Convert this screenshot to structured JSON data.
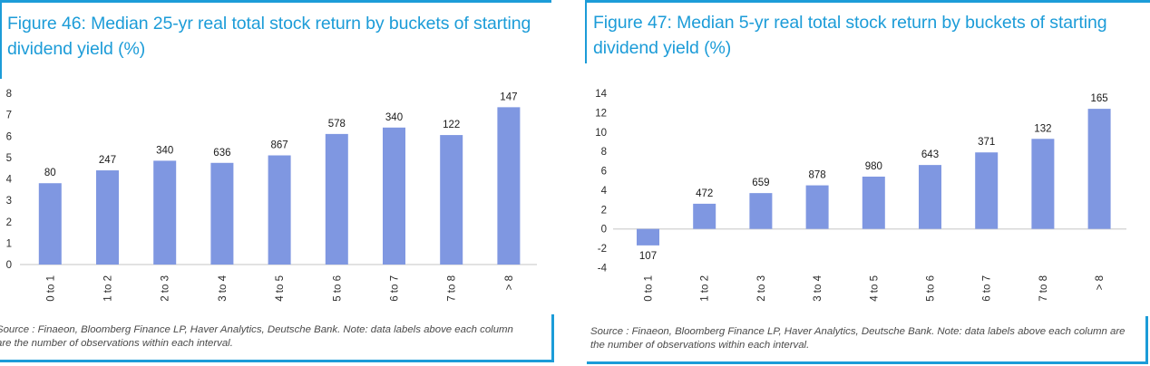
{
  "colors": {
    "accent_cyan": "#1C9CD8",
    "bar_blue": "#7F97E1",
    "axis_line_gray": "#D8D8D8",
    "label_dark": "#1A1A1A",
    "tick_gray": "#2B2B2B",
    "source_gray": "#4A4A4A"
  },
  "chart_data": [
    {
      "type": "bar",
      "title": "Figure 46: Median 25-yr real total stock return by buckets of starting dividend yield (%)",
      "note": "Source : Finaeon, Bloomberg Finance LP, Haver Analytics, Deutsche Bank. Note: data labels above each column are the number of observations within each interval.",
      "categories": [
        "0 to 1",
        "1 to 2",
        "2 to 3",
        "3 to 4",
        "4 to 5",
        "5 to 6",
        "6 to 7",
        "7 to 8",
        "> 8"
      ],
      "values": [
        3.8,
        4.4,
        4.85,
        4.75,
        5.1,
        6.1,
        6.4,
        6.05,
        7.35
      ],
      "bar_labels": [
        "80",
        "247",
        "340",
        "636",
        "867",
        "578",
        "340",
        "122",
        "147"
      ],
      "bar_labels_meaning": "number of observations within each interval",
      "xlabel": "",
      "ylabel": "",
      "ylim": [
        0,
        8
      ],
      "tick_step": 1,
      "grid": false,
      "legend_position": "none"
    },
    {
      "type": "bar",
      "title": "Figure 47: Median 5-yr real total stock return by buckets of starting dividend yield (%)",
      "note": "Source : Finaeon, Bloomberg Finance LP, Haver Analytics, Deutsche Bank. Note: data labels above each column are the number of observations within each interval.",
      "categories": [
        "0 to 1",
        "1 to 2",
        "2 to 3",
        "3 to 4",
        "4 to 5",
        "5 to 6",
        "6 to 7",
        "7 to 8",
        "> 8"
      ],
      "values": [
        -1.7,
        2.6,
        3.7,
        4.5,
        5.4,
        6.6,
        7.9,
        9.3,
        12.4
      ],
      "bar_labels": [
        "107",
        "472",
        "659",
        "878",
        "980",
        "643",
        "371",
        "132",
        "165"
      ],
      "bar_labels_meaning": "number of observations within each interval",
      "xlabel": "",
      "ylabel": "",
      "ylim": [
        -4,
        14
      ],
      "tick_step": 2,
      "grid": false,
      "legend_position": "none"
    }
  ]
}
